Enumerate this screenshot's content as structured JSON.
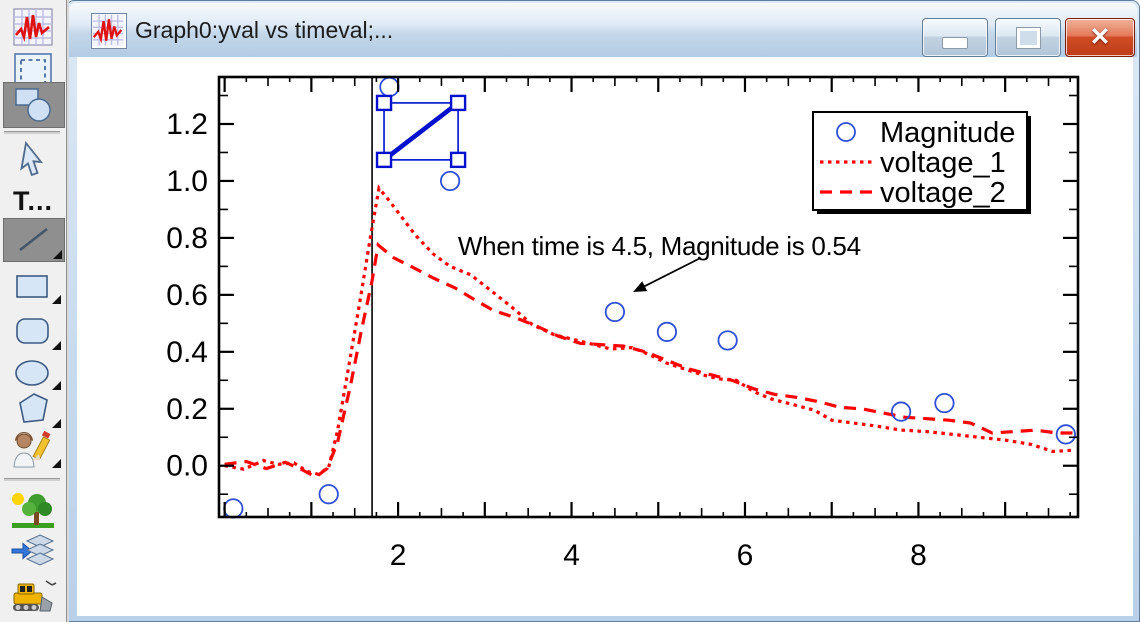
{
  "window": {
    "title": "Graph0:yval vs timeval;...",
    "buttons": {
      "minimize": "minimize",
      "maximize": "maximize",
      "close": "close"
    }
  },
  "palette": {
    "text_tool_label": "T...",
    "tools": [
      {
        "id": "graph-tool",
        "pressed": false,
        "flyout": false
      },
      {
        "id": "page-margins-tool",
        "pressed": false,
        "flyout": false
      },
      {
        "id": "draw-mode-toggle",
        "pressed": true,
        "flyout": false
      },
      {
        "id": "select-arrow-tool",
        "pressed": false,
        "flyout": false
      },
      {
        "id": "text-tool",
        "pressed": false,
        "flyout": false
      },
      {
        "id": "line-tool",
        "pressed": true,
        "flyout": true
      },
      {
        "id": "rectangle-tool",
        "pressed": false,
        "flyout": true
      },
      {
        "id": "rounded-rect-tool",
        "pressed": false,
        "flyout": true
      },
      {
        "id": "ellipse-tool",
        "pressed": false,
        "flyout": true
      },
      {
        "id": "polygon-tool",
        "pressed": false,
        "flyout": true
      },
      {
        "id": "freehand-tool",
        "pressed": false,
        "flyout": true
      },
      {
        "id": "environment-tool",
        "pressed": false,
        "flyout": false
      },
      {
        "id": "layers-tool",
        "pressed": false,
        "flyout": false
      },
      {
        "id": "grid-mover-tool",
        "pressed": false,
        "flyout": false
      }
    ]
  },
  "colors": {
    "trace_red": "#ff0000",
    "marker_blue": "#2e4fd6",
    "drawing_blue": "#0010cc",
    "axis_black": "#000000"
  },
  "chart_data": {
    "type": "line",
    "title": "",
    "xlabel": "",
    "ylabel": "",
    "xlim": [
      -0.065,
      9.84
    ],
    "ylim": [
      -0.18,
      1.365
    ],
    "grid": false,
    "x_axis": {
      "minor_step": 0.25,
      "medium_step": 0.5,
      "major_step": 1,
      "tick_labels": [
        {
          "value": 2,
          "label": "2"
        },
        {
          "value": 4,
          "label": "4"
        },
        {
          "value": 6,
          "label": "6"
        },
        {
          "value": 8,
          "label": "8"
        }
      ]
    },
    "y_axis": {
      "minor_step": 0.1,
      "major_step": 0.2,
      "tick_labels": [
        {
          "value": 0,
          "label": "0.0"
        },
        {
          "value": 0.2,
          "label": "0.2"
        },
        {
          "value": 0.4,
          "label": "0.4"
        },
        {
          "value": 0.6,
          "label": "0.6"
        },
        {
          "value": 0.8,
          "label": "0.8"
        },
        {
          "value": 1.0,
          "label": "1.0"
        },
        {
          "value": 1.2,
          "label": "1.2"
        }
      ]
    },
    "series": [
      {
        "name": "Magnitude",
        "style": "scatter-open-circle",
        "color": "#2e4fd6",
        "points": [
          [
            0.1,
            -0.15
          ],
          [
            1.2,
            -0.1
          ],
          [
            1.9,
            1.33
          ],
          [
            2.6,
            1.0
          ],
          [
            4.5,
            0.54
          ],
          [
            5.1,
            0.47
          ],
          [
            5.8,
            0.44
          ],
          [
            7.8,
            0.19
          ],
          [
            8.3,
            0.22
          ],
          [
            9.7,
            0.11
          ]
        ]
      },
      {
        "name": "voltage_1",
        "style": "dotted",
        "color": "#ff0000",
        "points": [
          [
            0.0,
            0.0
          ],
          [
            0.22,
            -0.012
          ],
          [
            0.45,
            0.018
          ],
          [
            0.62,
            0.005
          ],
          [
            0.8,
            0.01
          ],
          [
            0.95,
            -0.02
          ],
          [
            1.08,
            -0.03
          ],
          [
            1.2,
            -0.005
          ],
          [
            1.3,
            0.12
          ],
          [
            1.42,
            0.33
          ],
          [
            1.55,
            0.56
          ],
          [
            1.68,
            0.8
          ],
          [
            1.78,
            0.975
          ],
          [
            1.9,
            0.93
          ],
          [
            2.05,
            0.87
          ],
          [
            2.2,
            0.81
          ],
          [
            2.4,
            0.745
          ],
          [
            2.6,
            0.7
          ],
          [
            2.84,
            0.67
          ],
          [
            3.07,
            0.615
          ],
          [
            3.3,
            0.56
          ],
          [
            3.55,
            0.495
          ],
          [
            3.8,
            0.46
          ],
          [
            4.0,
            0.445
          ],
          [
            4.2,
            0.43
          ],
          [
            4.45,
            0.41
          ],
          [
            4.7,
            0.415
          ],
          [
            4.9,
            0.39
          ],
          [
            5.1,
            0.36
          ],
          [
            5.3,
            0.34
          ],
          [
            5.5,
            0.32
          ],
          [
            5.7,
            0.305
          ],
          [
            5.9,
            0.3
          ],
          [
            6.1,
            0.26
          ],
          [
            6.3,
            0.235
          ],
          [
            6.55,
            0.215
          ],
          [
            6.8,
            0.195
          ],
          [
            7.0,
            0.16
          ],
          [
            7.25,
            0.15
          ],
          [
            7.5,
            0.14
          ],
          [
            7.8,
            0.125
          ],
          [
            8.1,
            0.12
          ],
          [
            8.4,
            0.11
          ],
          [
            8.7,
            0.1
          ],
          [
            9.0,
            0.09
          ],
          [
            9.3,
            0.075
          ],
          [
            9.55,
            0.05
          ],
          [
            9.8,
            0.055
          ]
        ]
      },
      {
        "name": "voltage_2",
        "style": "dashed",
        "color": "#ff0000",
        "points": [
          [
            0.0,
            0.005
          ],
          [
            0.25,
            0.015
          ],
          [
            0.48,
            -0.01
          ],
          [
            0.7,
            0.012
          ],
          [
            0.9,
            -0.015
          ],
          [
            1.05,
            -0.04
          ],
          [
            1.18,
            -0.01
          ],
          [
            1.3,
            0.08
          ],
          [
            1.45,
            0.28
          ],
          [
            1.58,
            0.48
          ],
          [
            1.7,
            0.65
          ],
          [
            1.77,
            0.775
          ],
          [
            1.95,
            0.73
          ],
          [
            2.15,
            0.7
          ],
          [
            2.4,
            0.66
          ],
          [
            2.65,
            0.625
          ],
          [
            2.9,
            0.58
          ],
          [
            3.1,
            0.545
          ],
          [
            3.35,
            0.52
          ],
          [
            3.6,
            0.49
          ],
          [
            3.85,
            0.455
          ],
          [
            4.1,
            0.43
          ],
          [
            4.35,
            0.425
          ],
          [
            4.6,
            0.42
          ],
          [
            4.85,
            0.4
          ],
          [
            5.1,
            0.37
          ],
          [
            5.35,
            0.34
          ],
          [
            5.6,
            0.32
          ],
          [
            5.85,
            0.3
          ],
          [
            6.1,
            0.27
          ],
          [
            6.35,
            0.25
          ],
          [
            6.6,
            0.24
          ],
          [
            6.85,
            0.225
          ],
          [
            7.1,
            0.205
          ],
          [
            7.35,
            0.2
          ],
          [
            7.6,
            0.185
          ],
          [
            7.85,
            0.17
          ],
          [
            8.1,
            0.165
          ],
          [
            8.35,
            0.16
          ],
          [
            8.6,
            0.15
          ],
          [
            8.85,
            0.115
          ],
          [
            9.1,
            0.12
          ],
          [
            9.35,
            0.125
          ],
          [
            9.6,
            0.115
          ],
          [
            9.8,
            0.115
          ]
        ]
      }
    ],
    "legend": {
      "position": "top-right",
      "entries": [
        {
          "label": "Magnitude",
          "marker": "circle",
          "color": "#2e4fd6"
        },
        {
          "label": "voltage_1",
          "marker": "dotted-line",
          "color": "#ff0000"
        },
        {
          "label": "voltage_2",
          "marker": "dashed-line",
          "color": "#ff0000"
        }
      ]
    },
    "annotation": {
      "text": "When time is 4.5, Magnitude is 0.54",
      "text_pos": [
        2.69,
        0.74
      ],
      "arrow_from": [
        5.49,
        0.73
      ],
      "arrow_to": [
        4.71,
        0.61
      ]
    },
    "cursor_line_x": 1.7,
    "drawing_selection": {
      "x1": 1.838,
      "y1": 1.074,
      "x2": 2.692,
      "y2": 1.274,
      "shape": "thick diagonal line, bottom-left to top-right, with 4 selection handles"
    }
  }
}
